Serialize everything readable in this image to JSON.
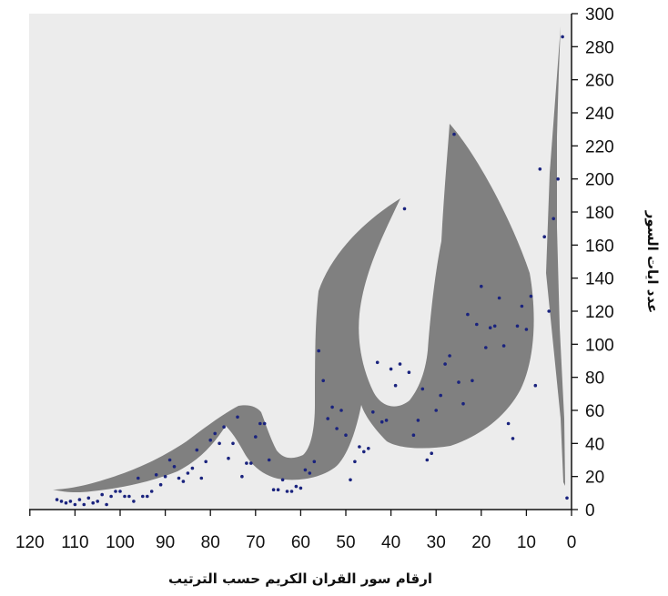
{
  "chart_data": {
    "type": "scatter",
    "title": "",
    "xlabel": "ارقام سور القران الكريم حسب  الترتيب",
    "ylabel": "عدد ايات السور",
    "xlim": [
      120,
      0
    ],
    "ylim": [
      0,
      300
    ],
    "x_reversed": true,
    "y_axis_side": "right",
    "grid": false,
    "legend": "none",
    "x_ticks": [
      "120",
      "110",
      "100",
      "90",
      "80",
      "70",
      "60",
      "50",
      "40",
      "30",
      "20",
      "10",
      "0"
    ],
    "y_ticks": [
      "0",
      "20",
      "40",
      "60",
      "80",
      "100",
      "120",
      "140",
      "160",
      "180",
      "200",
      "220",
      "240",
      "260",
      "280",
      "300"
    ],
    "colors": {
      "plot_background": "#ececec",
      "fill": "#808080",
      "marker": "#1a237e",
      "axis": "#111111"
    },
    "series": [
      {
        "x": [
          1,
          2,
          3,
          4,
          5,
          6,
          7,
          8,
          9,
          10,
          11,
          12,
          13,
          14,
          15,
          16,
          17,
          18,
          19,
          20,
          21,
          22,
          23,
          24,
          25,
          26,
          27,
          28,
          29,
          30,
          31,
          32,
          33,
          34,
          35,
          36,
          37,
          38,
          39,
          40,
          41,
          42,
          43,
          44,
          45,
          46,
          47,
          48,
          49,
          50,
          51,
          52,
          53,
          54,
          55,
          56,
          57,
          58,
          59,
          60,
          61,
          62,
          63,
          64,
          65,
          66,
          67,
          68,
          69,
          70,
          71,
          72,
          73,
          74,
          75,
          76,
          77,
          78,
          79,
          80,
          81,
          82,
          83,
          84,
          85,
          86,
          87,
          88,
          89,
          90,
          91,
          92,
          93,
          94,
          95,
          96,
          97,
          98,
          99,
          100,
          101,
          102,
          103,
          104,
          105,
          106,
          107,
          108,
          109,
          110,
          111,
          112,
          113,
          114
        ],
        "y": [
          7,
          286,
          200,
          176,
          120,
          165,
          206,
          75,
          129,
          109,
          123,
          111,
          43,
          52,
          99,
          128,
          111,
          110,
          98,
          135,
          112,
          78,
          118,
          64,
          77,
          227,
          93,
          88,
          69,
          60,
          34,
          30,
          73,
          54,
          45,
          83,
          182,
          88,
          75,
          85,
          54,
          53,
          89,
          59,
          37,
          35,
          38,
          29,
          18,
          45,
          60,
          49,
          62,
          55,
          78,
          96,
          29,
          22,
          24,
          13,
          14,
          11,
          11,
          18,
          12,
          12,
          30,
          52,
          52,
          44,
          28,
          28,
          20,
          56,
          40,
          31,
          50,
          40,
          46,
          42,
          29,
          19,
          36,
          25,
          22,
          17,
          19,
          26,
          30,
          20,
          15,
          21,
          11,
          8,
          8,
          19,
          5,
          8,
          8,
          11,
          11,
          8,
          3,
          9,
          5,
          4,
          7,
          3,
          6,
          3,
          5,
          4,
          5,
          6
        ]
      }
    ]
  }
}
